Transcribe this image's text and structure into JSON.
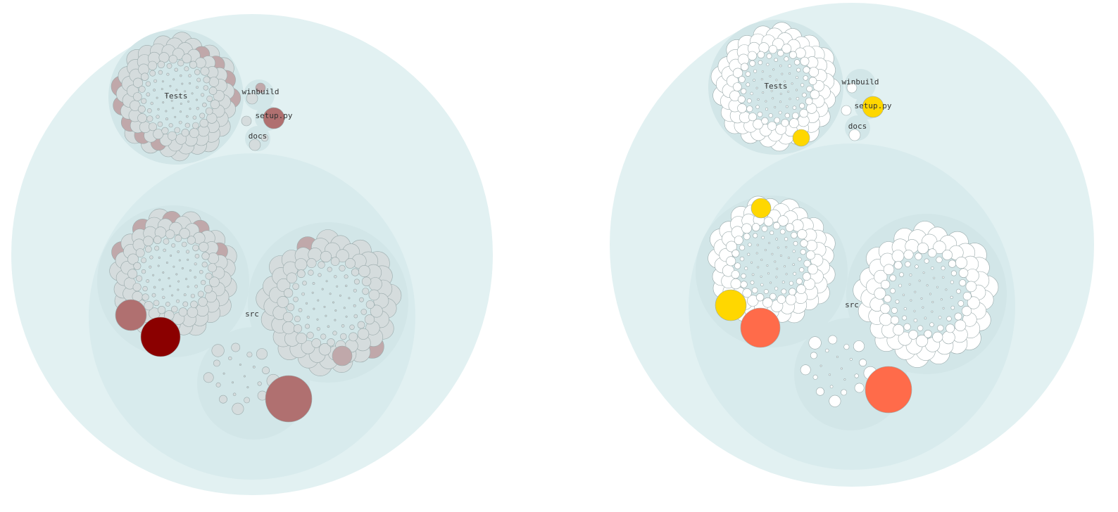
{
  "colors": {
    "root_fill": "#e2f1f2",
    "src_fill": "#d8ebed",
    "folder_fill": "#d2e6e8",
    "leaf_stroke": "#9aaaab",
    "left_leaf_base": "#d5dcdd",
    "left_leaf_mid": "#c0a8aa",
    "left_leaf_strong": "#b07070",
    "left_leaf_max": "#8b0000",
    "right_leaf_base": "#ffffff",
    "right_leaf_yellow": "#ffd700",
    "right_leaf_orange": "#ff6b4a"
  },
  "labels": {
    "tests": "Tests",
    "winbuild": "winbuild",
    "setup": "setup.py",
    "docs": "docs",
    "src": "src"
  }
}
